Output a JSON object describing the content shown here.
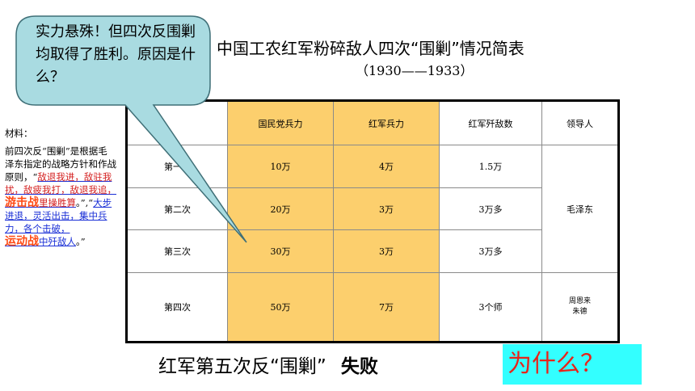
{
  "title": "中国工农红军粉碎敌人四次“围剿”情况简表",
  "subtitle": "（1930——1933）",
  "bubble": "实力悬殊！但四次反围剿均取得了胜利。原因是什么？",
  "material": {
    "heading": "材料：",
    "text1": "前四次反“围剿”是根据毛泽东指定的战略方针和作战原则，“",
    "red1": "敌退我进，敌驻我扰，敌疲我打，敌退我追，",
    "big1": "游击战",
    "red2": "里操胜算",
    "text2": "。”,“",
    "blue1": "大步进退，灵活出击，集中兵力，各个击破，",
    "big2": "运动战",
    "blue2": "中歼敌人",
    "text3": "。”"
  },
  "table": {
    "headers": [
      "",
      "国民党兵力",
      "红军兵力",
      "红军歼敌数",
      "领导人"
    ],
    "rows": [
      {
        "label": "第一次",
        "kmt": "10万",
        "red": "4万",
        "killed": "1.5万"
      },
      {
        "label": "第二次",
        "kmt": "20万",
        "red": "3万",
        "killed": "3万多"
      },
      {
        "label": "第三次",
        "kmt": "30万",
        "red": "3万",
        "killed": "3万多"
      },
      {
        "label": "第四次",
        "kmt": "50万",
        "red": "7万",
        "killed": "3个师"
      }
    ],
    "leader_1_3": "毛泽东",
    "leader_4": [
      "周恩来",
      "朱德"
    ]
  },
  "footer": {
    "text": "红军第五次反“围剿”",
    "result": "失败"
  },
  "why": "为什么？",
  "colors": {
    "highlight": "#fccf6d",
    "bubble_fill": "#a9dbe1",
    "why_bg": "#33ffff",
    "why_text": "#e8231a",
    "accent_red": "#d41f1f",
    "accent_blue": "#1a2fd6"
  }
}
